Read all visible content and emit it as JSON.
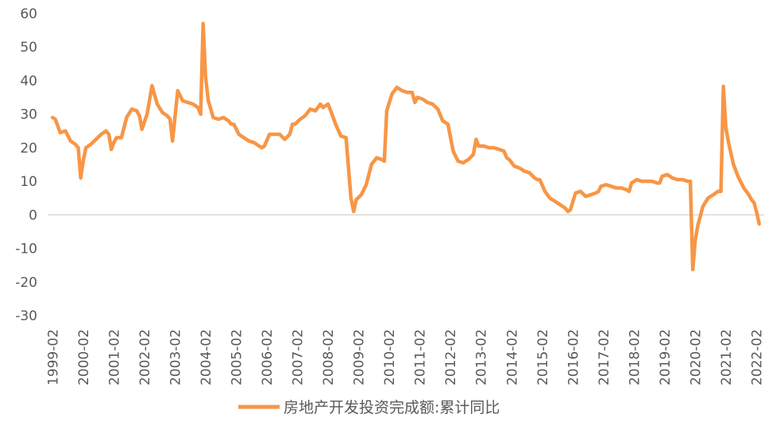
{
  "chart_data": {
    "type": "line",
    "title": "",
    "xlabel": "",
    "ylabel": "",
    "ylim": [
      -30,
      60
    ],
    "yticks": [
      60,
      50,
      40,
      30,
      20,
      10,
      0,
      -10,
      -20,
      -30
    ],
    "ytick_labels": [
      "60",
      "50",
      "40",
      "30",
      "20",
      "10",
      "0",
      "-10",
      "-20",
      "-30"
    ],
    "xtick_labels": [
      "1999-02",
      "2000-02",
      "2001-02",
      "2002-02",
      "2003-02",
      "2004-02",
      "2005-02",
      "2006-02",
      "2007-02",
      "2008-02",
      "2009-02",
      "2010-02",
      "2011-02",
      "2012-02",
      "2013-02",
      "2014-02",
      "2015-02",
      "2016-02",
      "2017-02",
      "2018-02",
      "2019-02",
      "2020-02",
      "2021-02",
      "2022-02"
    ],
    "grid": false,
    "zero_line": true,
    "legend_position": "bottom",
    "colors": {
      "series": "#f79646",
      "axis_text": "#595959",
      "zero_line": "#d9d9d9"
    },
    "series": [
      {
        "name": "房地产开发投资完成额:累计同比",
        "points": [
          [
            1999.08,
            29.0
          ],
          [
            1999.17,
            28.5
          ],
          [
            1999.33,
            24.5
          ],
          [
            1999.5,
            25.0
          ],
          [
            1999.67,
            22.0
          ],
          [
            1999.83,
            21.0
          ],
          [
            1999.92,
            20.0
          ],
          [
            2000.0,
            11.0
          ],
          [
            2000.08,
            16.0
          ],
          [
            2000.17,
            20.0
          ],
          [
            2000.33,
            21.0
          ],
          [
            2000.5,
            22.5
          ],
          [
            2000.67,
            24.0
          ],
          [
            2000.83,
            25.0
          ],
          [
            2000.92,
            24.0
          ],
          [
            2001.0,
            19.5
          ],
          [
            2001.08,
            21.5
          ],
          [
            2001.17,
            23.0
          ],
          [
            2001.33,
            23.0
          ],
          [
            2001.5,
            29.0
          ],
          [
            2001.67,
            31.5
          ],
          [
            2001.83,
            31.0
          ],
          [
            2001.92,
            29.5
          ],
          [
            2002.0,
            25.5
          ],
          [
            2002.17,
            30.0
          ],
          [
            2002.33,
            38.5
          ],
          [
            2002.5,
            33.0
          ],
          [
            2002.67,
            30.5
          ],
          [
            2002.83,
            29.5
          ],
          [
            2002.92,
            28.5
          ],
          [
            2003.0,
            22.0
          ],
          [
            2003.17,
            37.0
          ],
          [
            2003.33,
            34.0
          ],
          [
            2003.5,
            33.5
          ],
          [
            2003.67,
            33.0
          ],
          [
            2003.83,
            32.0
          ],
          [
            2003.92,
            30.0
          ],
          [
            2004.0,
            57.0
          ],
          [
            2004.08,
            41.0
          ],
          [
            2004.17,
            34.0
          ],
          [
            2004.33,
            29.0
          ],
          [
            2004.5,
            28.5
          ],
          [
            2004.67,
            29.0
          ],
          [
            2004.83,
            28.0
          ],
          [
            2004.92,
            27.0
          ],
          [
            2005.0,
            27.0
          ],
          [
            2005.17,
            24.0
          ],
          [
            2005.33,
            23.0
          ],
          [
            2005.5,
            22.0
          ],
          [
            2005.67,
            21.5
          ],
          [
            2005.83,
            20.5
          ],
          [
            2005.92,
            20.0
          ],
          [
            2006.0,
            20.5
          ],
          [
            2006.17,
            24.0
          ],
          [
            2006.33,
            24.0
          ],
          [
            2006.5,
            24.0
          ],
          [
            2006.67,
            22.5
          ],
          [
            2006.83,
            24.0
          ],
          [
            2006.92,
            27.0
          ],
          [
            2007.0,
            27.0
          ],
          [
            2007.17,
            28.5
          ],
          [
            2007.33,
            29.5
          ],
          [
            2007.5,
            31.5
          ],
          [
            2007.67,
            31.0
          ],
          [
            2007.83,
            33.0
          ],
          [
            2007.92,
            32.0
          ],
          [
            2008.0,
            32.5
          ],
          [
            2008.08,
            33.0
          ],
          [
            2008.17,
            31.0
          ],
          [
            2008.33,
            27.0
          ],
          [
            2008.5,
            23.5
          ],
          [
            2008.67,
            23.0
          ],
          [
            2008.83,
            5.0
          ],
          [
            2008.92,
            1.0
          ],
          [
            2009.0,
            4.5
          ],
          [
            2009.17,
            6.0
          ],
          [
            2009.33,
            9.0
          ],
          [
            2009.5,
            15.0
          ],
          [
            2009.67,
            17.0
          ],
          [
            2009.83,
            16.5
          ],
          [
            2009.92,
            16.0
          ],
          [
            2010.0,
            31.0
          ],
          [
            2010.17,
            36.0
          ],
          [
            2010.33,
            38.0
          ],
          [
            2010.5,
            37.0
          ],
          [
            2010.67,
            36.5
          ],
          [
            2010.83,
            36.5
          ],
          [
            2010.92,
            33.5
          ],
          [
            2011.0,
            35.0
          ],
          [
            2011.17,
            34.5
          ],
          [
            2011.33,
            33.5
          ],
          [
            2011.5,
            33.0
          ],
          [
            2011.67,
            31.5
          ],
          [
            2011.83,
            28.0
          ],
          [
            2011.92,
            27.5
          ],
          [
            2012.0,
            27.0
          ],
          [
            2012.17,
            19.0
          ],
          [
            2012.33,
            16.0
          ],
          [
            2012.5,
            15.5
          ],
          [
            2012.67,
            16.5
          ],
          [
            2012.83,
            18.0
          ],
          [
            2012.92,
            22.5
          ],
          [
            2013.0,
            20.5
          ],
          [
            2013.17,
            20.5
          ],
          [
            2013.33,
            20.0
          ],
          [
            2013.5,
            20.0
          ],
          [
            2013.67,
            19.5
          ],
          [
            2013.83,
            19.0
          ],
          [
            2013.92,
            17.0
          ],
          [
            2014.0,
            16.5
          ],
          [
            2014.17,
            14.5
          ],
          [
            2014.33,
            14.0
          ],
          [
            2014.5,
            13.0
          ],
          [
            2014.67,
            12.5
          ],
          [
            2014.83,
            11.0
          ],
          [
            2014.92,
            10.5
          ],
          [
            2015.0,
            10.5
          ],
          [
            2015.17,
            7.0
          ],
          [
            2015.33,
            5.0
          ],
          [
            2015.5,
            4.0
          ],
          [
            2015.67,
            3.0
          ],
          [
            2015.83,
            2.0
          ],
          [
            2015.92,
            1.0
          ],
          [
            2016.0,
            1.5
          ],
          [
            2016.17,
            6.5
          ],
          [
            2016.33,
            7.0
          ],
          [
            2016.5,
            5.5
          ],
          [
            2016.67,
            6.0
          ],
          [
            2016.83,
            6.5
          ],
          [
            2016.92,
            7.0
          ],
          [
            2017.0,
            8.5
          ],
          [
            2017.17,
            9.0
          ],
          [
            2017.33,
            8.5
          ],
          [
            2017.5,
            8.0
          ],
          [
            2017.67,
            8.0
          ],
          [
            2017.83,
            7.5
          ],
          [
            2017.92,
            7.0
          ],
          [
            2018.0,
            9.5
          ],
          [
            2018.17,
            10.5
          ],
          [
            2018.33,
            10.0
          ],
          [
            2018.5,
            10.0
          ],
          [
            2018.67,
            10.0
          ],
          [
            2018.83,
            9.5
          ],
          [
            2018.92,
            9.5
          ],
          [
            2019.0,
            11.5
          ],
          [
            2019.17,
            12.0
          ],
          [
            2019.33,
            11.0
          ],
          [
            2019.5,
            10.5
          ],
          [
            2019.67,
            10.5
          ],
          [
            2019.83,
            10.0
          ],
          [
            2019.92,
            10.0
          ],
          [
            2020.0,
            -16.3
          ],
          [
            2020.08,
            -7.5
          ],
          [
            2020.17,
            -3.0
          ],
          [
            2020.33,
            2.5
          ],
          [
            2020.5,
            5.0
          ],
          [
            2020.67,
            6.0
          ],
          [
            2020.83,
            7.0
          ],
          [
            2020.92,
            7.0
          ],
          [
            2021.0,
            38.3
          ],
          [
            2021.08,
            26.0
          ],
          [
            2021.17,
            21.5
          ],
          [
            2021.33,
            15.0
          ],
          [
            2021.5,
            11.0
          ],
          [
            2021.67,
            8.0
          ],
          [
            2021.83,
            6.0
          ],
          [
            2021.92,
            4.5
          ],
          [
            2022.0,
            3.7
          ],
          [
            2022.08,
            1.0
          ],
          [
            2022.17,
            -2.7
          ]
        ]
      }
    ]
  }
}
